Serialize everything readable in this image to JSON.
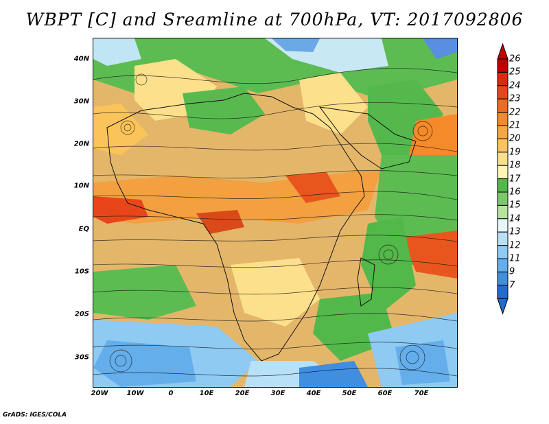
{
  "title": "WBPT [C] and Sreamline at 700hPa, VT: 2017092806",
  "credit": "GrADS: IGES/COLA",
  "lat_labels": [
    "40N",
    "30N",
    "20N",
    "10N",
    "EQ",
    "10S",
    "20S",
    "30S"
  ],
  "lon_labels": [
    "20W",
    "10W",
    "0",
    "10E",
    "20E",
    "30E",
    "40E",
    "50E",
    "60E",
    "70E"
  ],
  "colorbar": {
    "labels": [
      "26",
      "25",
      "24",
      "23",
      "22",
      "21",
      "20",
      "19",
      "18",
      "17",
      "16",
      "15",
      "14",
      "13",
      "12",
      "11",
      "9",
      "7"
    ],
    "colors": [
      "#c00000",
      "#d92a12",
      "#e8461a",
      "#f06a20",
      "#f58a2a",
      "#f7a83c",
      "#fbc45a",
      "#fde08c",
      "#fff6b8",
      "#52b84a",
      "#7cc96a",
      "#b4e49e",
      "#e6f6fa",
      "#b8e0f6",
      "#8ecaf2",
      "#64aeeb",
      "#3f8ee0",
      "#1f6cd2"
    ]
  }
}
